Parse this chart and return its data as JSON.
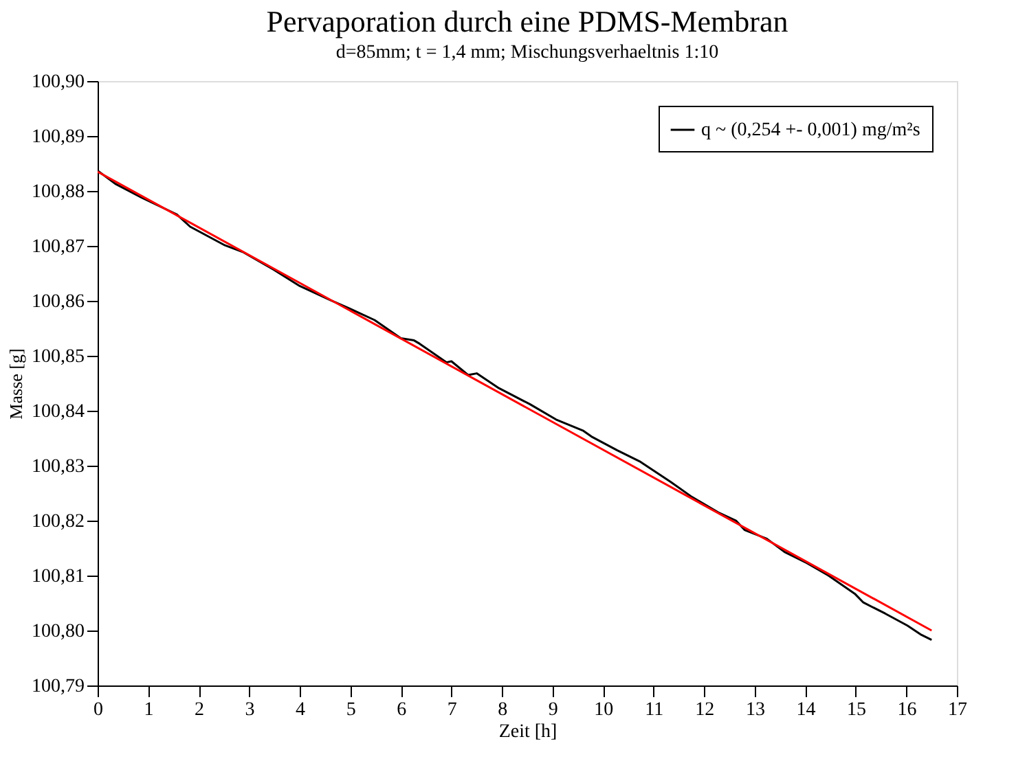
{
  "chart_data": {
    "type": "line",
    "title": "Pervaporation durch eine PDMS-Membran",
    "subtitle": "d=85mm; t = 1,4 mm; Mischungsverhaeltnis 1:10",
    "xlabel": "Zeit [h]",
    "ylabel": "Masse [g]",
    "xlim": [
      0,
      17
    ],
    "xticks": [
      0,
      1,
      2,
      3,
      4,
      5,
      6,
      7,
      8,
      9,
      10,
      11,
      12,
      13,
      14,
      15,
      16,
      17
    ],
    "ylim": [
      100.79,
      100.9
    ],
    "yticks": [
      {
        "value": 100.79,
        "label": "100,79"
      },
      {
        "value": 100.8,
        "label": "100,80"
      },
      {
        "value": 100.81,
        "label": "100,81"
      },
      {
        "value": 100.82,
        "label": "100,82"
      },
      {
        "value": 100.83,
        "label": "100,83"
      },
      {
        "value": 100.84,
        "label": "100,84"
      },
      {
        "value": 100.85,
        "label": "100,85"
      },
      {
        "value": 100.86,
        "label": "100,86"
      },
      {
        "value": 100.87,
        "label": "100,87"
      },
      {
        "value": 100.88,
        "label": "100,88"
      },
      {
        "value": 100.89,
        "label": "100,89"
      },
      {
        "value": 100.9,
        "label": "100,90"
      }
    ],
    "grid": false,
    "legend": "top right",
    "marker": "none",
    "line_style": "solid",
    "series": [
      {
        "name": "q ~ (0,254 +- 0,001) mg/m²s",
        "color": "#000000",
        "x": [
          0,
          0.35,
          0.87,
          1.57,
          1.83,
          2.52,
          2.87,
          3.48,
          4.0,
          4.61,
          4.96,
          5.48,
          6.0,
          6.26,
          6.37,
          6.9,
          7.0,
          7.33,
          7.5,
          7.94,
          8.55,
          9.07,
          9.6,
          9.77,
          10.28,
          10.72,
          11.33,
          11.76,
          12.28,
          12.63,
          12.8,
          13.24,
          13.59,
          14.03,
          14.46,
          14.98,
          15.15,
          15.58,
          16.02,
          16.28,
          16.5
        ],
        "values": [
          100.8837,
          100.8813,
          100.8788,
          100.8757,
          100.8735,
          100.8701,
          100.8689,
          100.8657,
          100.8627,
          100.8601,
          100.8587,
          100.8565,
          100.8532,
          100.8528,
          100.8522,
          100.8488,
          100.849,
          100.8465,
          100.8468,
          100.8441,
          100.8412,
          100.8384,
          100.8364,
          100.8353,
          100.8328,
          100.8308,
          100.8271,
          100.8243,
          100.8215,
          100.82,
          100.8183,
          100.8167,
          100.8143,
          100.8123,
          100.81,
          100.8067,
          100.8051,
          100.8031,
          100.8009,
          100.7993,
          100.7983
        ]
      },
      {
        "type": "line",
        "color": "#ff0000",
        "x": [
          0,
          16.5
        ],
        "values": [
          100.8835,
          100.8
        ]
      }
    ]
  }
}
